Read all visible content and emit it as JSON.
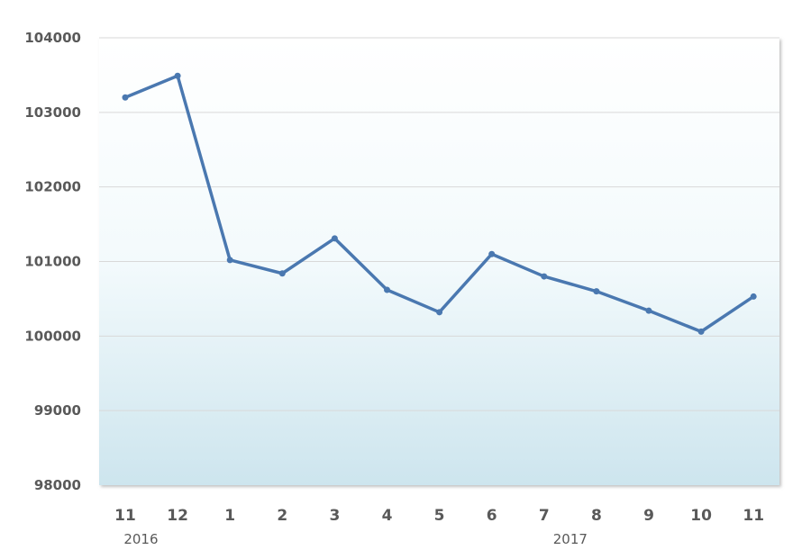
{
  "chart_data": {
    "type": "line",
    "title": "",
    "xlabel": "",
    "ylabel": "",
    "categories": [
      "11",
      "12",
      "1",
      "2",
      "3",
      "4",
      "5",
      "6",
      "7",
      "8",
      "9",
      "10",
      "11"
    ],
    "year_labels": [
      {
        "label": "2016",
        "at_index": 0.3
      },
      {
        "label": "2017",
        "at_index": 8.5
      }
    ],
    "series": [
      {
        "values": [
          103200,
          103490,
          101020,
          100840,
          101310,
          100620,
          100320,
          101100,
          100800,
          100600,
          100340,
          100060,
          100530
        ]
      }
    ],
    "ylim": [
      98000,
      104000
    ],
    "yticks": [
      98000,
      99000,
      100000,
      101000,
      102000,
      103000,
      104000
    ],
    "grid": true,
    "legend": "none",
    "colors": {
      "line": "#4a78b0",
      "grid": "#d9d9d9",
      "bg_top": "#ffffff",
      "bg_bottom": "#cde5ee"
    }
  }
}
